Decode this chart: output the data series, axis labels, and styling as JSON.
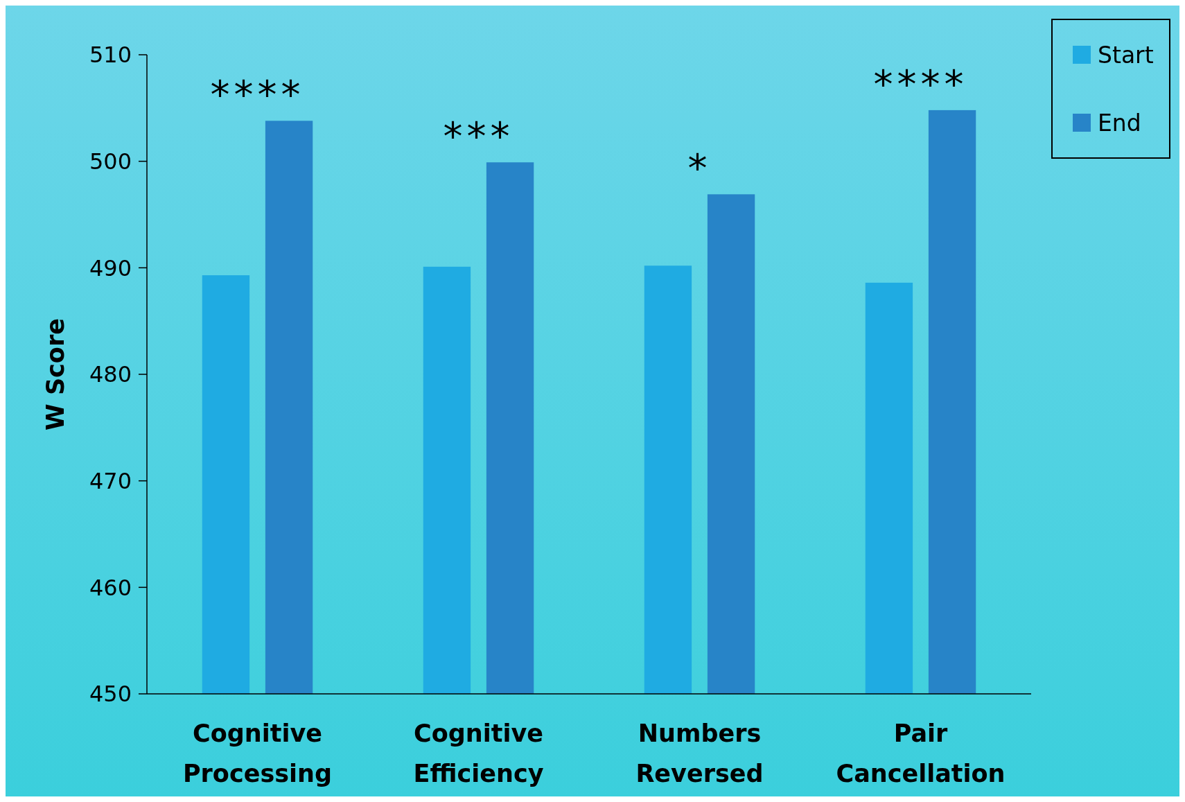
{
  "chart_data": {
    "type": "bar",
    "ylabel": "W Score",
    "categories": [
      "Cognitive Processing",
      "Cognitive Efficiency",
      "Numbers Reversed",
      "Pair Cancellation"
    ],
    "series": [
      {
        "name": "Start",
        "color": "#1fabe2",
        "values": [
          489.3,
          490.1,
          490.2,
          488.6
        ]
      },
      {
        "name": "End",
        "color": "#2784c8",
        "values": [
          503.8,
          499.9,
          496.9,
          504.8
        ]
      }
    ],
    "ylim": [
      450,
      510
    ],
    "yticks": [
      450,
      460,
      470,
      480,
      490,
      500,
      510
    ],
    "grid": false,
    "legend": "top right",
    "annotations": [
      "****",
      "***",
      "*",
      "****"
    ]
  }
}
